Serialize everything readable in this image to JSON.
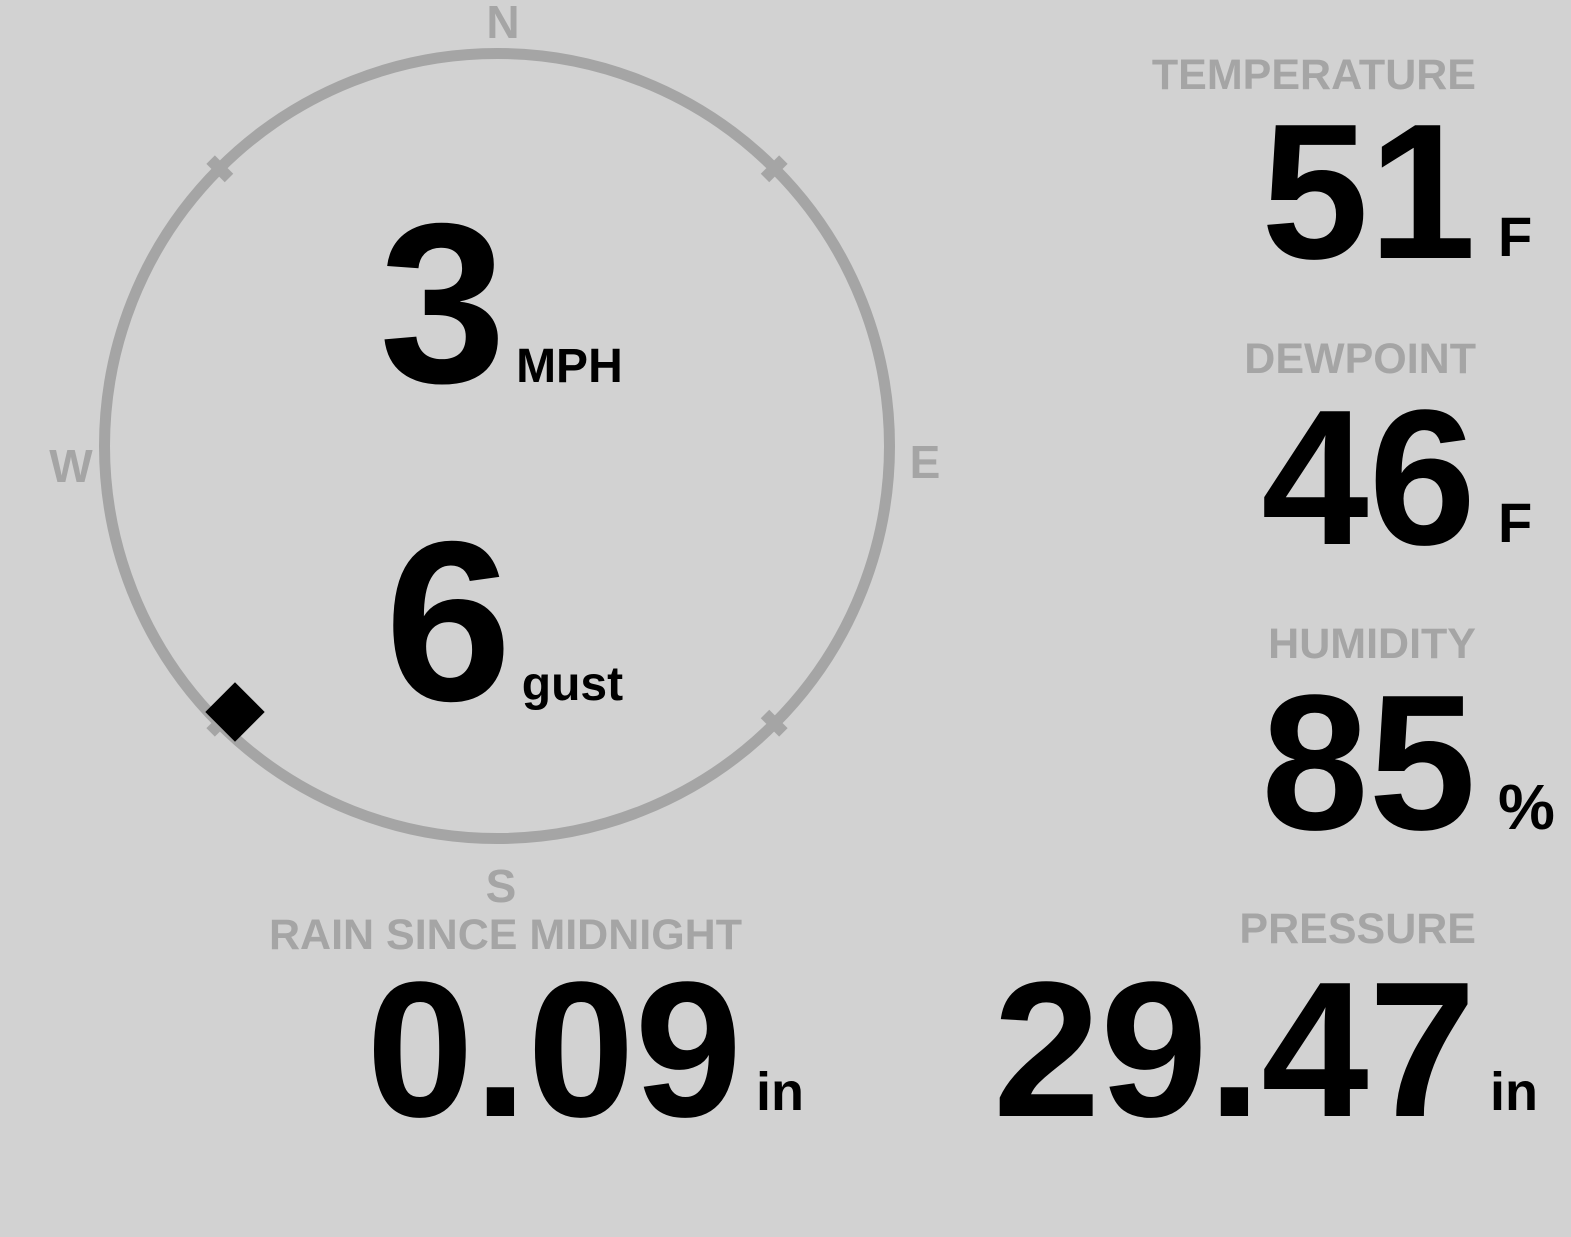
{
  "colors": {
    "background": "#d2d2d2",
    "muted_gray": "#a5a5a5",
    "value_black": "#000000"
  },
  "compass": {
    "cardinals": {
      "north": "N",
      "east": "E",
      "south": "S",
      "west": "W"
    },
    "speed": {
      "value": "3",
      "unit": "MPH"
    },
    "gust": {
      "value": "6",
      "unit": "gust"
    },
    "marker_direction": "SW"
  },
  "metrics": {
    "temperature": {
      "label": "TEMPERATURE",
      "value": "51",
      "unit": "F"
    },
    "dewpoint": {
      "label": "DEWPOINT",
      "value": "46",
      "unit": "F"
    },
    "humidity": {
      "label": "HUMIDITY",
      "value": "85",
      "unit": "%"
    },
    "rain_since_midnight": {
      "label": "RAIN SINCE MIDNIGHT",
      "value": "0.09",
      "unit": "in"
    },
    "pressure": {
      "label": "PRESSURE",
      "value": "29.47",
      "unit": "in"
    }
  }
}
